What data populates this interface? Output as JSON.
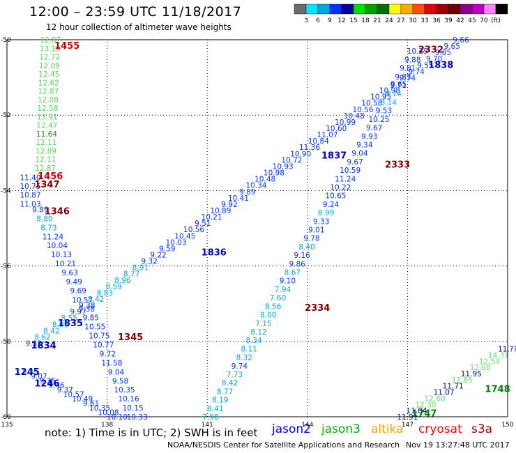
{
  "title": "12:00 – 23:59 UTC 11/18/2017",
  "subtitle": "12 hour collection of altimeter wave heights",
  "colorbar": {
    "colors": [
      "#6b6b6b",
      "#00e5ff",
      "#00a8e0",
      "#0032ff",
      "#0000a0",
      "#00e000",
      "#00a000",
      "#007000",
      "#ffff00",
      "#ffaa00",
      "#ff5000",
      "#e60000",
      "#a00000",
      "#6e0000",
      "#8c008c",
      "#c000c0",
      "#ff80ff",
      "#000000"
    ],
    "labels": [
      "3",
      "6",
      "9",
      "12",
      "15",
      "18",
      "21",
      "24",
      "27",
      "30",
      "33",
      "36",
      "39",
      "42",
      "45",
      "70",
      "(ft)"
    ]
  },
  "note": "note:  1) Time is in UTC;  2) SWH is in feet",
  "satellites": [
    {
      "name": "jason2",
      "color": "#0000ff"
    },
    {
      "name": "jason3",
      "color": "#00b000"
    },
    {
      "name": "altika",
      "color": "#ffa000"
    },
    {
      "name": "cryosat",
      "color": "#ff0000"
    },
    {
      "name": "s3a",
      "color": "#a00000"
    }
  ],
  "credit": "NOAA/NESDIS Center for Satellite Applications and Research",
  "stamp": "Nov 19 13:27:48 UTC 2017",
  "chart_data": {
    "type": "scatter",
    "xlim": [
      135,
      150
    ],
    "ylim": [
      -60,
      -50
    ],
    "x_ticks": [
      135,
      138,
      141,
      144,
      147,
      150
    ],
    "y_ticks": [
      -50,
      -52,
      -54,
      -56,
      -58,
      -60
    ],
    "x_tick_labels": [
      "135",
      "138",
      "141",
      "144",
      "147",
      "150"
    ],
    "y_tick_labels": [
      "-50",
      "-52",
      "-54",
      "-56",
      "-58",
      "-60"
    ],
    "grid": true,
    "time_labels": [
      {
        "text": "1455",
        "lon": 136.8,
        "lat": -50.15,
        "color": "#cc0000"
      },
      {
        "text": "1456",
        "lon": 136.3,
        "lat": -53.6,
        "color": "#cc0000"
      },
      {
        "text": "1347",
        "lon": 136.2,
        "lat": -53.83,
        "color": "#800000"
      },
      {
        "text": "1346",
        "lon": 136.5,
        "lat": -54.54,
        "color": "#800000"
      },
      {
        "text": "1345",
        "lon": 138.7,
        "lat": -57.87,
        "color": "#800000"
      },
      {
        "text": "1836",
        "lon": 141.2,
        "lat": -55.63,
        "color": "#0000cc"
      },
      {
        "text": "1835",
        "lon": 136.9,
        "lat": -57.5,
        "color": "#0000cc"
      },
      {
        "text": "1834",
        "lon": 136.1,
        "lat": -58.1,
        "color": "#0000cc"
      },
      {
        "text": "1245",
        "lon": 135.6,
        "lat": -58.8,
        "color": "#0000cc"
      },
      {
        "text": "1246",
        "lon": 136.2,
        "lat": -59.1,
        "color": "#0000cc"
      },
      {
        "text": "1837",
        "lon": 144.8,
        "lat": -53.06,
        "color": "#0000cc"
      },
      {
        "text": "1838",
        "lon": 148.0,
        "lat": -50.66,
        "color": "#0000cc"
      },
      {
        "text": "2332",
        "lon": 147.7,
        "lat": -50.25,
        "color": "#800000"
      },
      {
        "text": "2333",
        "lon": 146.7,
        "lat": -53.3,
        "color": "#800000"
      },
      {
        "text": "2334",
        "lon": 144.3,
        "lat": -57.1,
        "color": "#800000"
      },
      {
        "text": "1748",
        "lon": 149.7,
        "lat": -59.25,
        "color": "#008000"
      },
      {
        "text": "1747",
        "lon": 147.5,
        "lat": -59.9,
        "color": "#008000"
      }
    ],
    "series": [
      {
        "satellite": "cryosat",
        "color_map": "wave_height",
        "start": [
          136.3,
          -50.0
        ],
        "end": [
          136.15,
          -53.4
        ],
        "values": [
          "12.87",
          "13.10",
          "12.72",
          "12.09",
          "12.45",
          "12.62",
          "12.87",
          "12.08",
          "12.58",
          "13.91",
          "12.47",
          "11.64",
          "12.11",
          "12.89",
          "12.11",
          "12.87"
        ]
      },
      {
        "satellite": "s3a",
        "color_map": "wave_height",
        "start": [
          135.7,
          -53.65
        ],
        "end": [
          135.7,
          -54.35
        ],
        "values": [
          "11.40",
          "10.75",
          "10.87",
          "11.03"
        ]
      },
      {
        "satellite": "s3a",
        "color_map": "wave_height",
        "start": [
          136.0,
          -54.5
        ],
        "end": [
          138.9,
          -60.0
        ],
        "values": [
          "9.89",
          "8.80",
          "8.73",
          "11.24",
          "10.04",
          "10.13",
          "10.21",
          "9.63",
          "9.49",
          "9.69",
          "10.57",
          "9.38",
          "9.85",
          "10.55",
          "10.75",
          "10.77",
          "9.72",
          "11.58",
          "9.04",
          "9.58",
          "10.35",
          "10.16",
          "10.15",
          "10.33"
        ]
      },
      {
        "satellite": "jason2",
        "color_map": "wave_height",
        "start": [
          135.7,
          -58.8
        ],
        "end": [
          138.3,
          -60.0
        ],
        "values": [
          "8.35",
          "9.07",
          "9.35",
          "9.46",
          "9.37",
          "10.57",
          "10.49",
          "9.61",
          "10.35",
          "10.08",
          "10.10"
        ]
      },
      {
        "satellite": "jason2",
        "color_map": "wave_height",
        "start": [
          135.8,
          -58.05
        ],
        "end": [
          148.6,
          -50.0
        ],
        "values": [
          "9.32",
          "8.62",
          "8.42",
          "8.95",
          "8.55",
          "9.97",
          "9.38",
          "8.42",
          "8.83",
          "8.59",
          "8.96",
          "8.77",
          "8.91",
          "9.32",
          "9.22",
          "9.59",
          "10.03",
          "10.45",
          "10.56",
          "9.51",
          "10.21",
          "10.89",
          "9.92",
          "10.41",
          "9.89",
          "10.34",
          "10.48",
          "10.98",
          "10.93",
          "10.72",
          "10.90",
          "11.36",
          "10.84",
          "11.07",
          "10.60",
          "10.99",
          "10.48",
          "10.56",
          "10.58",
          "10.95",
          "10.98",
          "9.65",
          "9.74",
          "9.74",
          "9.55",
          "9.70",
          "9.85",
          "9.65",
          "9.66"
        ]
      },
      {
        "satellite": "jason2",
        "color_map": "wave_height",
        "start": [
          147.3,
          -50.3
        ],
        "end": [
          141.1,
          -60.0
        ],
        "values": [
          "10.29",
          "9.88",
          "9.81",
          "9.83",
          "9.71",
          "8.74",
          "8.14",
          "9.53",
          "10.25",
          "9.67",
          "9.93",
          "9.34",
          "9.04",
          "9.67",
          "10.59",
          "11.24",
          "10.22",
          "10.65",
          "9.24",
          "8.99",
          "9.33",
          "9.01",
          "9.78",
          "8.40",
          "9.16",
          "9.86",
          "8.67",
          "9.10",
          "7.94",
          "7.60",
          "8.56",
          "8.00",
          "7.15",
          "8.12",
          "8.34",
          "8.11",
          "8.32",
          "9.74",
          "7.73",
          "8.42",
          "8.77",
          "8.19",
          "8.41",
          "7.98"
        ]
      },
      {
        "satellite": "jason3",
        "color_map": "wave_height",
        "start": [
          150.0,
          -58.2
        ],
        "end": [
          147.0,
          -60.0
        ],
        "values": [
          "11.??",
          "14.31",
          "12.54",
          "12.68",
          "11.95",
          "12.85",
          "11.71",
          "11.07",
          "12.60",
          "12.30",
          "11.84",
          "11.91"
        ]
      }
    ]
  }
}
